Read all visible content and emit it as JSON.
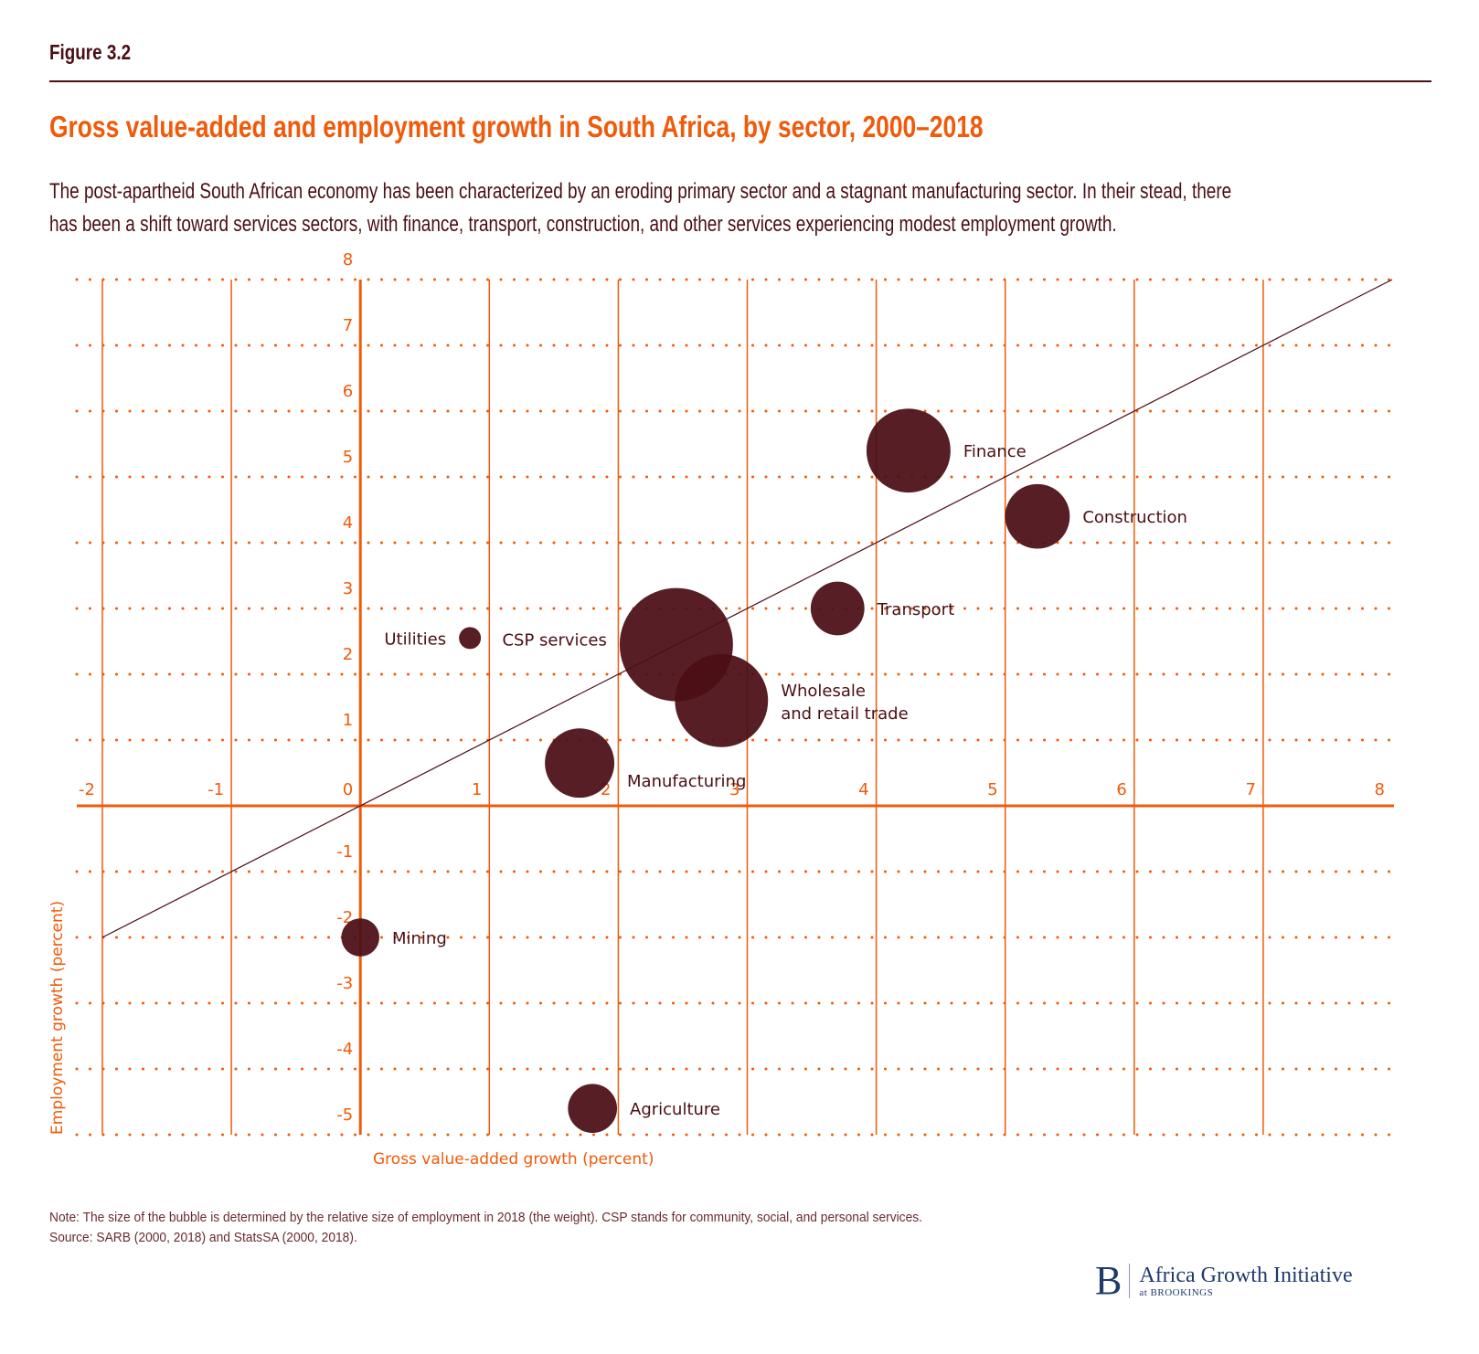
{
  "figure_label": "Figure 3.2",
  "title": "Gross value-added and employment growth in South Africa, by sector, 2000–2018",
  "subtitle_lines": [
    "The post-apartheid South African economy has been characterized by an eroding primary sector and a stagnant manufacturing sector. In their stead, there",
    "has been a shift toward services sectors, with finance, transport, construction, and other services experiencing modest employment growth."
  ],
  "note": "Note: The size of the bubble is determined by the relative size of employment in 2018 (the weight). CSP stands for community, social, and personal services.",
  "source": "Source: SARB (2000, 2018) and StatsSA (2000, 2018).",
  "logo": {
    "mark": "B",
    "name": "Africa Growth Initiative",
    "sub": "at BROOKINGS"
  },
  "colors": {
    "accent": "#f05a0a",
    "bubble": "#4a0e14",
    "text": "#4a0e14",
    "logo": "#1f3a6b"
  },
  "chart_data": {
    "type": "scatter",
    "subtype": "bubble",
    "xlabel": "Gross value-added growth (percent)",
    "ylabel": "Employment growth (percent)",
    "xlim": [
      -2,
      8
    ],
    "ylim": [
      -5,
      8
    ],
    "x_ticks": [
      -2,
      -1,
      0,
      1,
      2,
      3,
      4,
      5,
      6,
      7,
      8
    ],
    "y_ticks": [
      8,
      7,
      6,
      5,
      4,
      3,
      2,
      1,
      0,
      -1,
      -2,
      -3,
      -4,
      -5
    ],
    "grid": true,
    "reference_line": {
      "label": "45-degree line",
      "from": [
        -2,
        -2
      ],
      "to": [
        8,
        8
      ]
    },
    "points": [
      {
        "label": "Finance",
        "x": 4.25,
        "y": 5.4,
        "weight": 2.2
      },
      {
        "label": "Construction",
        "x": 5.25,
        "y": 4.4,
        "weight": 1.3
      },
      {
        "label": "Transport",
        "x": 3.7,
        "y": 3.0,
        "weight": 0.9
      },
      {
        "label": "Utilities",
        "x": 0.85,
        "y": 2.55,
        "weight": 0.15
      },
      {
        "label": "CSP services",
        "x": 2.45,
        "y": 2.45,
        "weight": 4.0
      },
      {
        "label": "Wholesale and retail trade",
        "x": 2.8,
        "y": 1.6,
        "weight": 2.7
      },
      {
        "label": "Manufacturing",
        "x": 1.7,
        "y": 0.65,
        "weight": 1.5
      },
      {
        "label": "Mining",
        "x": 0.0,
        "y": -2.0,
        "weight": 0.45
      },
      {
        "label": "Agriculture",
        "x": 1.8,
        "y": -4.6,
        "weight": 0.75
      }
    ]
  }
}
